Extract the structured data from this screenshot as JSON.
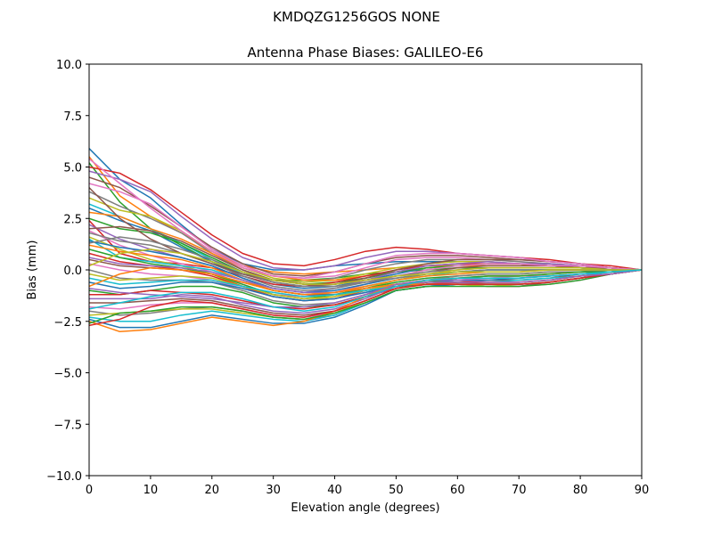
{
  "suptitle": "KMDQZG1256GOS   NONE",
  "chart_data": {
    "type": "line",
    "title": "Antenna Phase Biases: GALILEO-E6",
    "xlabel": "Elevation angle (degrees)",
    "ylabel": "Bias (mm)",
    "xlim": [
      0,
      90
    ],
    "ylim": [
      -10,
      10
    ],
    "x_ticks": [
      0,
      10,
      20,
      30,
      40,
      50,
      60,
      70,
      80,
      90
    ],
    "y_ticks": [
      -10.0,
      -7.5,
      -5.0,
      -2.5,
      0.0,
      2.5,
      5.0,
      7.5,
      10.0
    ],
    "x_tick_labels": [
      "0",
      "10",
      "20",
      "30",
      "40",
      "50",
      "60",
      "70",
      "80",
      "90"
    ],
    "y_tick_labels": [
      "−10.0",
      "−7.5",
      "−5.0",
      "−2.5",
      "0.0",
      "2.5",
      "5.0",
      "7.5",
      "10.0"
    ],
    "grid": false,
    "legend": "none",
    "x": [
      0,
      5,
      10,
      15,
      20,
      25,
      30,
      35,
      40,
      45,
      50,
      55,
      60,
      65,
      70,
      75,
      80,
      85,
      90
    ],
    "series_colors": [
      "#1f77b4",
      "#ff7f0e",
      "#2ca02c",
      "#d62728",
      "#9467bd",
      "#8c564b",
      "#e377c2",
      "#7f7f7f",
      "#bcbd22",
      "#17becf"
    ],
    "series": [
      {
        "values": [
          5.9,
          4.4,
          3.5,
          2.2,
          1.0,
          0.3,
          0.0,
          0.0,
          0.2,
          0.3,
          0.4,
          0.4,
          0.4,
          0.4,
          0.3,
          0.3,
          0.2,
          0.1,
          0.0
        ]
      },
      {
        "values": [
          5.5,
          3.6,
          2.6,
          1.8,
          0.9,
          0.2,
          -0.1,
          -0.2,
          -0.1,
          0.0,
          0.1,
          0.2,
          0.2,
          0.2,
          0.2,
          0.2,
          0.1,
          0.1,
          0.0
        ]
      },
      {
        "values": [
          5.2,
          3.3,
          2.0,
          1.2,
          0.4,
          -0.2,
          -0.5,
          -0.5,
          -0.4,
          -0.2,
          -0.1,
          0.0,
          0.1,
          0.1,
          0.1,
          0.1,
          0.1,
          0.0,
          0.0
        ]
      },
      {
        "values": [
          5.0,
          4.7,
          3.9,
          2.8,
          1.7,
          0.8,
          0.3,
          0.2,
          0.5,
          0.9,
          1.1,
          1.0,
          0.8,
          0.7,
          0.6,
          0.5,
          0.3,
          0.2,
          0.0
        ]
      },
      {
        "values": [
          4.8,
          4.4,
          3.8,
          2.6,
          1.5,
          0.6,
          0.1,
          0.0,
          0.2,
          0.6,
          0.9,
          0.9,
          0.8,
          0.7,
          0.6,
          0.4,
          0.3,
          0.1,
          0.0
        ]
      },
      {
        "values": [
          4.5,
          4.0,
          3.1,
          2.1,
          1.1,
          0.3,
          -0.2,
          -0.3,
          -0.1,
          0.3,
          0.6,
          0.7,
          0.7,
          0.6,
          0.5,
          0.4,
          0.3,
          0.1,
          0.0
        ]
      },
      {
        "values": [
          4.2,
          3.8,
          3.2,
          2.1,
          1.0,
          0.2,
          -0.3,
          -0.4,
          -0.3,
          0.1,
          0.5,
          0.6,
          0.6,
          0.5,
          0.4,
          0.3,
          0.2,
          0.1,
          0.0
        ]
      },
      {
        "values": [
          3.8,
          3.1,
          2.5,
          1.8,
          0.8,
          0.0,
          -0.5,
          -0.6,
          -0.4,
          0.0,
          0.3,
          0.5,
          0.5,
          0.5,
          0.4,
          0.3,
          0.2,
          0.1,
          0.0
        ]
      },
      {
        "values": [
          3.5,
          2.9,
          2.6,
          1.9,
          0.9,
          0.1,
          -0.4,
          -0.6,
          -0.5,
          -0.2,
          0.1,
          0.3,
          0.4,
          0.4,
          0.3,
          0.2,
          0.2,
          0.1,
          0.0
        ]
      },
      {
        "values": [
          3.2,
          2.6,
          2.0,
          1.3,
          0.5,
          -0.2,
          -0.6,
          -0.8,
          -0.7,
          -0.4,
          -0.1,
          0.2,
          0.3,
          0.3,
          0.3,
          0.2,
          0.1,
          0.1,
          0.0
        ]
      },
      {
        "values": [
          3.0,
          2.4,
          1.9,
          1.1,
          0.4,
          -0.3,
          -0.7,
          -0.9,
          -0.8,
          -0.5,
          -0.2,
          0.1,
          0.2,
          0.2,
          0.2,
          0.2,
          0.1,
          0.0,
          0.0
        ]
      },
      {
        "values": [
          2.8,
          2.6,
          2.0,
          1.5,
          0.8,
          0.1,
          -0.3,
          -0.5,
          -0.5,
          -0.3,
          -0.1,
          0.1,
          0.2,
          0.2,
          0.2,
          0.2,
          0.1,
          0.1,
          0.0
        ]
      },
      {
        "values": [
          2.5,
          2.0,
          1.8,
          1.3,
          0.6,
          -0.1,
          -0.5,
          -0.7,
          -0.6,
          -0.4,
          -0.1,
          0.1,
          0.2,
          0.3,
          0.3,
          0.2,
          0.2,
          0.1,
          0.0
        ]
      },
      {
        "values": [
          2.4,
          0.8,
          0.4,
          0.3,
          0.1,
          -0.3,
          -0.7,
          -0.8,
          -0.6,
          -0.3,
          0.0,
          0.2,
          0.3,
          0.3,
          0.3,
          0.2,
          0.2,
          0.1,
          0.0
        ]
      },
      {
        "values": [
          2.2,
          1.5,
          1.0,
          0.6,
          0.2,
          -0.4,
          -0.9,
          -1.1,
          -0.9,
          -0.5,
          -0.1,
          0.2,
          0.3,
          0.4,
          0.3,
          0.3,
          0.2,
          0.1,
          0.0
        ]
      },
      {
        "values": [
          2.0,
          2.1,
          1.9,
          1.4,
          0.7,
          0.0,
          -0.5,
          -0.7,
          -0.7,
          -0.5,
          -0.3,
          -0.1,
          0.1,
          0.2,
          0.2,
          0.2,
          0.1,
          0.1,
          0.0
        ]
      },
      {
        "values": [
          1.9,
          1.2,
          0.7,
          0.3,
          -0.1,
          -0.7,
          -1.2,
          -1.3,
          -1.1,
          -0.7,
          -0.3,
          0.0,
          0.2,
          0.3,
          0.3,
          0.2,
          0.2,
          0.1,
          0.0
        ]
      },
      {
        "values": [
          1.8,
          1.4,
          1.2,
          0.8,
          0.3,
          -0.3,
          -0.8,
          -1.0,
          -0.9,
          -0.6,
          -0.3,
          -0.1,
          0.0,
          0.1,
          0.1,
          0.1,
          0.1,
          0.0,
          0.0
        ]
      },
      {
        "values": [
          1.6,
          1.0,
          0.5,
          0.2,
          -0.2,
          -0.8,
          -1.3,
          -1.5,
          -1.3,
          -0.9,
          -0.5,
          -0.2,
          0.0,
          0.1,
          0.1,
          0.1,
          0.1,
          0.0,
          0.0
        ]
      },
      {
        "values": [
          1.5,
          0.6,
          0.4,
          0.2,
          0.0,
          -0.5,
          -1.0,
          -1.2,
          -1.1,
          -0.8,
          -0.5,
          -0.3,
          -0.1,
          0.0,
          0.0,
          0.0,
          0.0,
          0.0,
          0.0
        ]
      },
      {
        "values": [
          1.4,
          1.1,
          0.9,
          0.6,
          0.2,
          -0.4,
          -0.9,
          -1.1,
          -1.0,
          -0.7,
          -0.4,
          -0.2,
          -0.1,
          0.0,
          0.0,
          0.0,
          0.0,
          0.0,
          0.0
        ]
      },
      {
        "values": [
          1.2,
          0.9,
          0.7,
          0.5,
          0.1,
          -0.5,
          -1.0,
          -1.2,
          -1.1,
          -0.8,
          -0.5,
          -0.3,
          -0.2,
          -0.1,
          -0.1,
          0.0,
          0.0,
          0.0,
          0.0
        ]
      },
      {
        "values": [
          1.0,
          0.6,
          0.3,
          0.1,
          -0.2,
          -0.7,
          -1.2,
          -1.4,
          -1.2,
          -0.9,
          -0.6,
          -0.4,
          -0.3,
          -0.2,
          -0.2,
          -0.1,
          -0.1,
          0.0,
          0.0
        ]
      },
      {
        "values": [
          0.8,
          0.4,
          0.2,
          0.0,
          -0.3,
          -0.8,
          -1.3,
          -1.5,
          -1.4,
          -1.0,
          -0.7,
          -0.5,
          -0.4,
          -0.3,
          -0.3,
          -0.2,
          -0.1,
          -0.1,
          0.0
        ]
      },
      {
        "values": [
          0.6,
          0.3,
          0.2,
          0.1,
          -0.1,
          -0.5,
          -0.9,
          -1.1,
          -1.1,
          -0.9,
          -0.7,
          -0.6,
          -0.5,
          -0.4,
          -0.4,
          -0.3,
          -0.2,
          -0.1,
          0.0
        ]
      },
      {
        "values": [
          0.5,
          0.2,
          0.1,
          0.0,
          -0.2,
          -0.6,
          -1.0,
          -1.2,
          -1.2,
          -1.0,
          -0.8,
          -0.7,
          -0.6,
          -0.5,
          -0.5,
          -0.4,
          -0.2,
          -0.1,
          0.0
        ]
      },
      {
        "values": [
          0.3,
          0.0,
          -0.2,
          -0.3,
          -0.5,
          -0.9,
          -1.3,
          -1.5,
          -1.4,
          -1.1,
          -0.8,
          -0.6,
          -0.5,
          -0.4,
          -0.3,
          -0.3,
          -0.2,
          -0.1,
          0.0
        ]
      },
      {
        "values": [
          0.0,
          -0.4,
          -0.5,
          -0.5,
          -0.6,
          -1.0,
          -1.5,
          -1.7,
          -1.6,
          -1.2,
          -0.8,
          -0.5,
          -0.3,
          -0.2,
          -0.2,
          -0.1,
          -0.1,
          0.0,
          0.0
        ]
      },
      {
        "values": [
          -0.2,
          -0.5,
          -0.4,
          -0.3,
          -0.4,
          -0.8,
          -1.2,
          -1.4,
          -1.3,
          -1.0,
          -0.7,
          -0.5,
          -0.4,
          -0.3,
          -0.3,
          -0.2,
          -0.1,
          -0.1,
          0.0
        ]
      },
      {
        "values": [
          -0.4,
          -0.7,
          -0.6,
          -0.5,
          -0.5,
          -0.8,
          -1.1,
          -1.3,
          -1.2,
          -1.0,
          -0.8,
          -0.7,
          -0.6,
          -0.6,
          -0.5,
          -0.4,
          -0.3,
          -0.1,
          0.0
        ]
      },
      {
        "values": [
          -0.6,
          -0.9,
          -0.8,
          -0.6,
          -0.6,
          -0.9,
          -1.3,
          -1.5,
          -1.4,
          -1.1,
          -0.8,
          -0.6,
          -0.5,
          -0.5,
          -0.4,
          -0.3,
          -0.2,
          -0.1,
          0.0
        ]
      },
      {
        "values": [
          -0.8,
          -0.2,
          0.1,
          0.0,
          -0.2,
          -0.6,
          -1.0,
          -1.2,
          -1.1,
          -0.9,
          -0.7,
          -0.6,
          -0.6,
          -0.6,
          -0.6,
          -0.5,
          -0.3,
          -0.2,
          0.0
        ]
      },
      {
        "values": [
          -1.0,
          -1.2,
          -1.0,
          -0.8,
          -0.8,
          -1.1,
          -1.6,
          -1.8,
          -1.7,
          -1.3,
          -0.9,
          -0.6,
          -0.4,
          -0.3,
          -0.3,
          -0.2,
          -0.1,
          -0.1,
          0.0
        ]
      },
      {
        "values": [
          -1.2,
          -1.2,
          -1.0,
          -1.1,
          -1.2,
          -1.5,
          -1.8,
          -1.9,
          -1.7,
          -1.3,
          -0.9,
          -0.7,
          -0.6,
          -0.6,
          -0.6,
          -0.5,
          -0.3,
          -0.2,
          0.0
        ]
      },
      {
        "values": [
          -1.4,
          -1.4,
          -1.4,
          -1.2,
          -1.3,
          -1.7,
          -2.0,
          -2.1,
          -1.9,
          -1.4,
          -0.8,
          -0.6,
          -0.6,
          -0.7,
          -0.7,
          -0.6,
          -0.4,
          -0.2,
          0.0
        ]
      },
      {
        "values": [
          -1.6,
          -1.6,
          -1.5,
          -1.4,
          -1.5,
          -1.8,
          -2.1,
          -2.2,
          -2.0,
          -1.5,
          -0.9,
          -0.7,
          -0.7,
          -0.8,
          -0.8,
          -0.6,
          -0.4,
          -0.2,
          0.0
        ]
      },
      {
        "values": [
          -1.8,
          -1.9,
          -1.7,
          -1.6,
          -1.6,
          -1.9,
          -2.2,
          -2.3,
          -2.1,
          -1.5,
          -0.9,
          -0.7,
          -0.7,
          -0.8,
          -0.8,
          -0.7,
          -0.5,
          -0.2,
          0.0
        ]
      },
      {
        "values": [
          -2.0,
          -2.2,
          -2.1,
          -1.9,
          -1.8,
          -2.0,
          -2.3,
          -2.4,
          -2.2,
          -1.6,
          -1.0,
          -0.8,
          -0.7,
          -0.7,
          -0.7,
          -0.6,
          -0.4,
          -0.2,
          0.0
        ]
      },
      {
        "values": [
          -2.2,
          -2.1,
          -2.0,
          -1.9,
          -1.9,
          -2.1,
          -2.3,
          -2.4,
          -2.1,
          -1.5,
          -0.9,
          -0.7,
          -0.7,
          -0.8,
          -0.7,
          -0.6,
          -0.4,
          -0.2,
          0.0
        ]
      },
      {
        "values": [
          -2.3,
          -2.5,
          -2.5,
          -2.2,
          -2.0,
          -2.2,
          -2.4,
          -2.5,
          -2.2,
          -1.6,
          -1.0,
          -0.8,
          -0.7,
          -0.7,
          -0.7,
          -0.6,
          -0.4,
          -0.2,
          0.0
        ]
      },
      {
        "values": [
          -2.4,
          -2.8,
          -2.8,
          -2.5,
          -2.2,
          -2.4,
          -2.6,
          -2.6,
          -2.3,
          -1.7,
          -1.0,
          -0.8,
          -0.7,
          -0.7,
          -0.7,
          -0.6,
          -0.4,
          -0.2,
          0.0
        ]
      },
      {
        "values": [
          -2.5,
          -3.0,
          -2.9,
          -2.6,
          -2.3,
          -2.5,
          -2.7,
          -2.5,
          -2.0,
          -1.3,
          -0.7,
          -0.7,
          -0.7,
          -0.7,
          -0.7,
          -0.6,
          -0.4,
          -0.2,
          0.0
        ]
      },
      {
        "values": [
          -2.6,
          -2.1,
          -2.0,
          -1.8,
          -1.8,
          -2.0,
          -2.3,
          -2.4,
          -2.1,
          -1.6,
          -1.0,
          -0.8,
          -0.8,
          -0.8,
          -0.8,
          -0.7,
          -0.5,
          -0.2,
          0.0
        ]
      },
      {
        "values": [
          -2.7,
          -2.4,
          -1.8,
          -1.5,
          -1.6,
          -1.9,
          -2.2,
          -2.3,
          -2.0,
          -1.5,
          -0.9,
          -0.7,
          -0.7,
          -0.7,
          -0.7,
          -0.6,
          -0.4,
          -0.2,
          0.0
        ]
      },
      {
        "values": [
          -0.9,
          -1.1,
          -1.2,
          -1.3,
          -1.4,
          -1.6,
          -1.8,
          -1.8,
          -1.6,
          -1.2,
          -0.7,
          -0.5,
          -0.5,
          -0.6,
          -0.6,
          -0.5,
          -0.3,
          -0.2,
          0.0
        ]
      },
      {
        "values": [
          4.0,
          2.5,
          1.5,
          0.8,
          0.3,
          -0.2,
          -0.6,
          -0.8,
          -0.7,
          -0.4,
          0.0,
          0.3,
          0.5,
          0.5,
          0.5,
          0.4,
          0.3,
          0.1,
          0.0
        ]
      },
      {
        "values": [
          5.4,
          4.2,
          3.0,
          1.9,
          0.9,
          0.1,
          -0.3,
          -0.4,
          -0.1,
          0.3,
          0.7,
          0.8,
          0.8,
          0.7,
          0.6,
          0.4,
          0.3,
          0.1,
          0.0
        ]
      },
      {
        "values": [
          1.3,
          1.6,
          1.4,
          1.0,
          0.5,
          -0.1,
          -0.6,
          -0.8,
          -0.8,
          -0.6,
          -0.4,
          -0.2,
          -0.1,
          0.0,
          0.0,
          0.0,
          0.0,
          0.0,
          0.0
        ]
      },
      {
        "values": [
          0.2,
          0.8,
          1.0,
          0.8,
          0.4,
          -0.1,
          -0.5,
          -0.7,
          -0.7,
          -0.5,
          -0.3,
          -0.2,
          -0.1,
          -0.1,
          -0.1,
          0.0,
          0.0,
          0.0,
          0.0
        ]
      },
      {
        "values": [
          -1.9,
          -1.6,
          -1.3,
          -1.1,
          -1.1,
          -1.4,
          -1.8,
          -2.0,
          -1.8,
          -1.3,
          -0.8,
          -0.5,
          -0.4,
          -0.4,
          -0.4,
          -0.3,
          -0.2,
          -0.1,
          0.0
        ]
      }
    ]
  }
}
